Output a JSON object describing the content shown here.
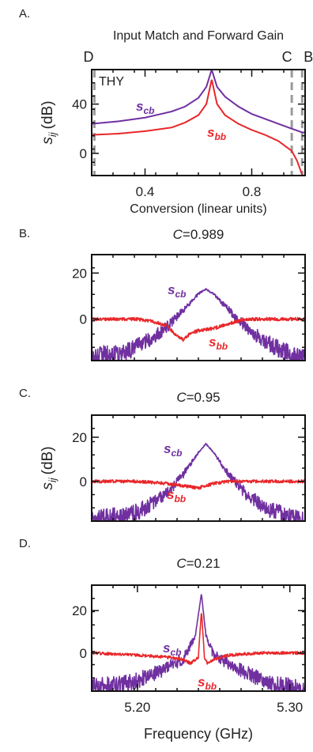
{
  "colors": {
    "scb": "#7030a0",
    "sbb": "#e8272a",
    "dashed": "#9a9a9a",
    "frame": "#111111"
  },
  "chart_data": [
    {
      "panel_label": "A.",
      "type": "line",
      "title": "Input Match and Forward Gain",
      "xlabel": "Conversion (linear units)",
      "ylabel_var": "s",
      "ylabel_sub": "ij",
      "ylabel_unit": "(dB)",
      "xlim": [
        0.2,
        1.0
      ],
      "ylim": [
        -18,
        68
      ],
      "x_ticks": [
        "0.4",
        "0.8"
      ],
      "x_tick_values": [
        0.4,
        0.8
      ],
      "y_ticks": [
        "0",
        "40"
      ],
      "y_tick_values": [
        0,
        40
      ],
      "markers": [
        {
          "label": "D",
          "x": 0.21
        },
        {
          "label": "C",
          "x": 0.95
        },
        {
          "label": "B",
          "x": 0.989
        }
      ],
      "annotation": "THY",
      "series": [
        {
          "name_var": "s",
          "name_sub": "cb",
          "color_key": "scb",
          "x": [
            0.2,
            0.3,
            0.4,
            0.5,
            0.55,
            0.6,
            0.63,
            0.65,
            0.67,
            0.7,
            0.75,
            0.8,
            0.85,
            0.9,
            0.95,
            0.99
          ],
          "y": [
            24,
            26,
            29,
            34,
            38,
            45,
            54,
            68,
            54,
            46,
            38,
            32,
            28,
            24,
            20,
            17
          ]
        },
        {
          "name_var": "s",
          "name_sub": "bb",
          "color_key": "sbb",
          "x": [
            0.2,
            0.3,
            0.4,
            0.5,
            0.55,
            0.6,
            0.63,
            0.65,
            0.67,
            0.7,
            0.75,
            0.8,
            0.85,
            0.9,
            0.95,
            0.97,
            0.99
          ],
          "y": [
            15,
            16,
            18,
            21,
            25,
            31,
            40,
            60,
            40,
            31,
            24,
            19,
            15,
            10,
            2,
            -6,
            -18
          ]
        }
      ]
    },
    {
      "panel_label": "B.",
      "type": "line",
      "title_var": "C",
      "title_value": "=0.989",
      "xlim": [
        5.17,
        5.31
      ],
      "ylim": [
        -18,
        28
      ],
      "y_ticks": [
        "20",
        "0"
      ],
      "y_tick_values": [
        20,
        0
      ],
      "series": [
        {
          "name_var": "s",
          "name_sub": "cb",
          "color_key": "scb",
          "x": [
            5.17,
            5.19,
            5.2,
            5.21,
            5.22,
            5.23,
            5.24,
            5.245,
            5.25,
            5.26,
            5.27,
            5.28,
            5.29,
            5.3,
            5.31
          ],
          "y": [
            -16,
            -15,
            -12,
            -8,
            -3,
            4,
            11,
            13,
            11,
            4,
            -3,
            -8,
            -12,
            -15,
            -16
          ]
        },
        {
          "name_var": "s",
          "name_sub": "bb",
          "color_key": "sbb",
          "x": [
            5.17,
            5.19,
            5.2,
            5.21,
            5.22,
            5.225,
            5.23,
            5.235,
            5.24,
            5.25,
            5.26,
            5.27,
            5.28,
            5.3,
            5.31
          ],
          "y": [
            0,
            0,
            0,
            -1,
            -3,
            -7,
            -9,
            -6,
            -5,
            -4,
            -2,
            0,
            0,
            0,
            0
          ]
        }
      ]
    },
    {
      "panel_label": "C.",
      "type": "line",
      "title_var": "C",
      "title_value": "=0.95",
      "ylabel_var": "s",
      "ylabel_sub": "ij",
      "ylabel_unit": "(dB)",
      "xlim": [
        5.17,
        5.31
      ],
      "ylim": [
        -18,
        30
      ],
      "y_ticks": [
        "20",
        "0"
      ],
      "y_tick_values": [
        20,
        0
      ],
      "series": [
        {
          "name_var": "s",
          "name_sub": "cb",
          "color_key": "scb",
          "x": [
            5.17,
            5.19,
            5.2,
            5.21,
            5.22,
            5.23,
            5.24,
            5.245,
            5.25,
            5.26,
            5.27,
            5.28,
            5.29,
            5.3,
            5.31
          ],
          "y": [
            -17,
            -16,
            -14,
            -10,
            -5,
            3,
            13,
            17,
            13,
            3,
            -5,
            -10,
            -14,
            -16,
            -17
          ]
        },
        {
          "name_var": "s",
          "name_sub": "bb",
          "color_key": "sbb",
          "x": [
            5.17,
            5.2,
            5.22,
            5.23,
            5.24,
            5.245,
            5.25,
            5.26,
            5.28,
            5.31
          ],
          "y": [
            0,
            0,
            -1,
            -2,
            -3,
            -2,
            -1,
            0,
            0,
            0
          ]
        }
      ]
    },
    {
      "panel_label": "D.",
      "type": "line",
      "title_var": "C",
      "title_value": "=0.21",
      "xlabel": "Frequency (GHz)",
      "xlim": [
        5.17,
        5.31
      ],
      "ylim": [
        -18,
        32
      ],
      "x_ticks": [
        "5.20",
        "5.30"
      ],
      "x_tick_values": [
        5.2,
        5.3
      ],
      "y_ticks": [
        "20",
        "0"
      ],
      "y_tick_values": [
        20,
        0
      ],
      "series": [
        {
          "name_var": "s",
          "name_sub": "cb",
          "color_key": "scb",
          "x": [
            5.17,
            5.19,
            5.2,
            5.21,
            5.22,
            5.23,
            5.238,
            5.242,
            5.245,
            5.25,
            5.26,
            5.27,
            5.28,
            5.29,
            5.31
          ],
          "y": [
            -16,
            -15,
            -13,
            -10,
            -7,
            -3,
            8,
            28,
            8,
            -1,
            -5,
            -9,
            -12,
            -15,
            -17
          ]
        },
        {
          "name_var": "s",
          "name_sub": "bb",
          "color_key": "sbb",
          "x": [
            5.17,
            5.2,
            5.22,
            5.23,
            5.235,
            5.24,
            5.242,
            5.244,
            5.246,
            5.25,
            5.26,
            5.28,
            5.31
          ],
          "y": [
            0,
            -1,
            -2,
            -3,
            -5,
            -2,
            20,
            -2,
            -5,
            -3,
            -1,
            0,
            0
          ]
        }
      ]
    }
  ]
}
